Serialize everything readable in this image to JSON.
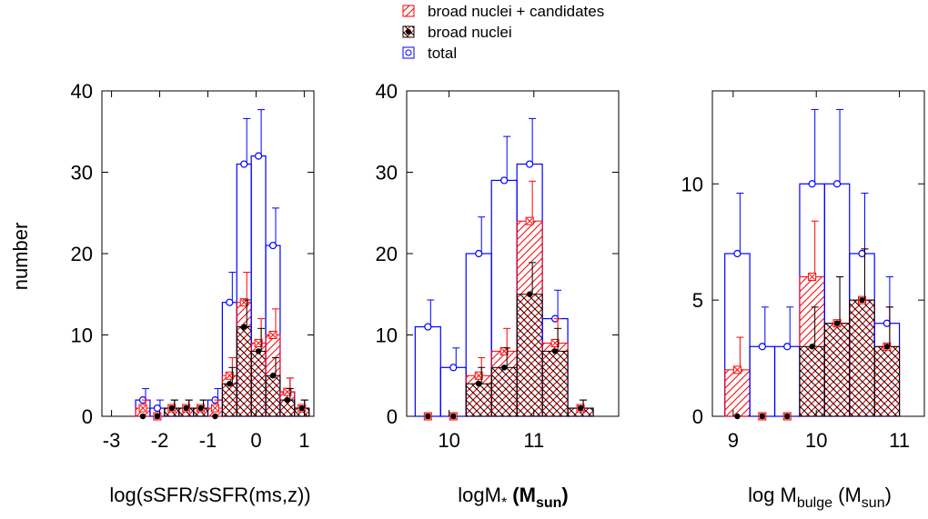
{
  "legend": {
    "items": [
      {
        "label": "broad nuclei + candidates",
        "color": "#ff0000",
        "pattern": "crosshatch-red",
        "marker": "boxed-x"
      },
      {
        "label": "broad nuclei",
        "color": "#000000",
        "pattern": "crosshatch-black",
        "marker": "filled-circle"
      },
      {
        "label": "total",
        "color": "#0000ff",
        "pattern": "none",
        "marker": "open-circle"
      }
    ]
  },
  "ylabel": "number",
  "colors": {
    "total": "#0000ff",
    "candidates": "#ff0000",
    "broad": "#000000"
  },
  "chart_data": [
    {
      "type": "bar",
      "xlabel": {
        "parts": [
          {
            "t": "log(sSFR/sSFR(ms,z))"
          }
        ]
      },
      "xlim": [
        -3.2,
        1.2
      ],
      "ylim": [
        0,
        40
      ],
      "xticks": [
        -3,
        -2,
        -1,
        0,
        1
      ],
      "xtick_labels": [
        "-3",
        "-2",
        "-1",
        "0",
        "1"
      ],
      "yticks": [
        0,
        10,
        20,
        30,
        40
      ],
      "ytick_labels": [
        "0",
        "10",
        "20",
        "30",
        "40"
      ],
      "bins": [
        {
          "x0": -2.5,
          "x1": -2.2,
          "total": 2,
          "total_err": 1.4,
          "cand": 1,
          "cand_err": 1.0,
          "broad": 0,
          "broad_err": 0
        },
        {
          "x0": -2.2,
          "x1": -1.9,
          "total": 1,
          "total_err": 1.0,
          "cand": 0,
          "cand_err": 0,
          "broad": 0,
          "broad_err": 0
        },
        {
          "x0": -1.9,
          "x1": -1.6,
          "total": 1,
          "total_err": 1.0,
          "cand": 1,
          "cand_err": 1.0,
          "broad": 1,
          "broad_err": 1.0
        },
        {
          "x0": -1.6,
          "x1": -1.3,
          "total": 1,
          "total_err": 1.0,
          "cand": 1,
          "cand_err": 1.0,
          "broad": 1,
          "broad_err": 1.0
        },
        {
          "x0": -1.3,
          "x1": -1.0,
          "total": 1,
          "total_err": 1.0,
          "cand": 1,
          "cand_err": 1.0,
          "broad": 1,
          "broad_err": 1.0
        },
        {
          "x0": -1.0,
          "x1": -0.7,
          "total": 2,
          "total_err": 1.4,
          "cand": 1,
          "cand_err": 1.0,
          "broad": 0,
          "broad_err": 0
        },
        {
          "x0": -0.7,
          "x1": -0.4,
          "total": 14,
          "total_err": 3.7,
          "cand": 5,
          "cand_err": 2.2,
          "broad": 4,
          "broad_err": 2.0
        },
        {
          "x0": -0.4,
          "x1": -0.1,
          "total": 31,
          "total_err": 5.6,
          "cand": 14,
          "cand_err": 3.7,
          "broad": 11,
          "broad_err": 3.3
        },
        {
          "x0": -0.1,
          "x1": 0.2,
          "total": 32,
          "total_err": 5.7,
          "cand": 9,
          "cand_err": 3.0,
          "broad": 8,
          "broad_err": 2.8
        },
        {
          "x0": 0.2,
          "x1": 0.5,
          "total": 21,
          "total_err": 4.6,
          "cand": 10,
          "cand_err": 3.2,
          "broad": 5,
          "broad_err": 2.2
        },
        {
          "x0": 0.5,
          "x1": 0.8,
          "total": 3,
          "total_err": 1.7,
          "cand": 3,
          "cand_err": 1.7,
          "broad": 2,
          "broad_err": 1.4
        },
        {
          "x0": 0.8,
          "x1": 1.1,
          "total": 1,
          "total_err": 1.0,
          "cand": 1,
          "cand_err": 1.0,
          "broad": 1,
          "broad_err": 1.0
        }
      ]
    },
    {
      "type": "bar",
      "xlabel": {
        "parts": [
          {
            "t": "logM"
          },
          {
            "t": "*",
            "sub": true
          },
          {
            "t": " ",
            "bold": true
          },
          {
            "t": "(M",
            "bold": true
          },
          {
            "t": "sun",
            "sub": true,
            "bold": true
          },
          {
            "t": ")",
            "bold": true
          }
        ]
      },
      "xlim": [
        9.5,
        12.0
      ],
      "ylim": [
        0,
        40
      ],
      "xticks": [
        10,
        11
      ],
      "xtick_labels": [
        "10",
        "11"
      ],
      "yticks": [
        0,
        10,
        20,
        30,
        40
      ],
      "ytick_labels": [
        "0",
        "10",
        "20",
        "30",
        "40"
      ],
      "bins": [
        {
          "x0": 9.6,
          "x1": 9.9,
          "total": 11,
          "total_err": 3.3,
          "cand": 0,
          "cand_err": 0,
          "broad": 0,
          "broad_err": 0
        },
        {
          "x0": 9.9,
          "x1": 10.2,
          "total": 6,
          "total_err": 2.4,
          "cand": 0,
          "cand_err": 0,
          "broad": 0,
          "broad_err": 0
        },
        {
          "x0": 10.2,
          "x1": 10.5,
          "total": 20,
          "total_err": 4.5,
          "cand": 5,
          "cand_err": 2.2,
          "broad": 4,
          "broad_err": 2.0
        },
        {
          "x0": 10.5,
          "x1": 10.8,
          "total": 29,
          "total_err": 5.4,
          "cand": 8,
          "cand_err": 2.8,
          "broad": 6,
          "broad_err": 2.4
        },
        {
          "x0": 10.8,
          "x1": 11.1,
          "total": 31,
          "total_err": 5.6,
          "cand": 24,
          "cand_err": 4.9,
          "broad": 15,
          "broad_err": 3.9
        },
        {
          "x0": 11.1,
          "x1": 11.4,
          "total": 12,
          "total_err": 3.5,
          "cand": 9,
          "cand_err": 3.0,
          "broad": 8,
          "broad_err": 2.8
        },
        {
          "x0": 11.4,
          "x1": 11.7,
          "total": 1,
          "total_err": 1.0,
          "cand": 1,
          "cand_err": 1.0,
          "broad": 1,
          "broad_err": 1.0
        }
      ]
    },
    {
      "type": "bar",
      "xlabel": {
        "parts": [
          {
            "t": "log M"
          },
          {
            "t": "bulge",
            "sub": true
          },
          {
            "t": " (M"
          },
          {
            "t": "sun",
            "sub": true
          },
          {
            "t": ")"
          }
        ]
      },
      "xlim": [
        8.75,
        11.3
      ],
      "ylim": [
        0,
        14
      ],
      "xticks": [
        9,
        10,
        11
      ],
      "xtick_labels": [
        "9",
        "10",
        "11"
      ],
      "yticks": [
        0,
        5,
        10
      ],
      "ytick_labels": [
        "0",
        "5",
        "10"
      ],
      "bins": [
        {
          "x0": 8.9,
          "x1": 9.2,
          "total": 7,
          "total_err": 2.6,
          "cand": 2,
          "cand_err": 1.4,
          "broad": 0,
          "broad_err": 0
        },
        {
          "x0": 9.2,
          "x1": 9.5,
          "total": 3,
          "total_err": 1.7,
          "cand": 0,
          "cand_err": 0,
          "broad": 0,
          "broad_err": 0
        },
        {
          "x0": 9.5,
          "x1": 9.8,
          "total": 3,
          "total_err": 1.7,
          "cand": 0,
          "cand_err": 0,
          "broad": 0,
          "broad_err": 0
        },
        {
          "x0": 9.8,
          "x1": 10.1,
          "total": 10,
          "total_err": 3.2,
          "cand": 6,
          "cand_err": 2.4,
          "broad": 3,
          "broad_err": 1.7
        },
        {
          "x0": 10.1,
          "x1": 10.4,
          "total": 10,
          "total_err": 3.2,
          "cand": 4,
          "cand_err": 2.0,
          "broad": 4,
          "broad_err": 2.0
        },
        {
          "x0": 10.4,
          "x1": 10.7,
          "total": 7,
          "total_err": 2.6,
          "cand": 5,
          "cand_err": 2.2,
          "broad": 5,
          "broad_err": 2.2
        },
        {
          "x0": 10.7,
          "x1": 11.0,
          "total": 4,
          "total_err": 2.0,
          "cand": 3,
          "cand_err": 1.7,
          "broad": 3,
          "broad_err": 1.7
        }
      ]
    }
  ]
}
